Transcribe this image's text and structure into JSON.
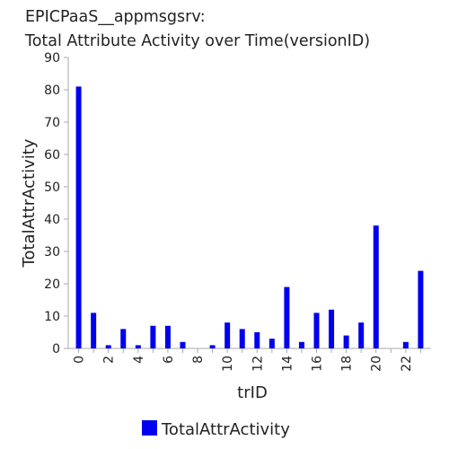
{
  "chart_data": {
    "type": "bar",
    "title": "EPICPaaS__appmsgsrv:",
    "subtitle": "Total Attribute Activity over Time(versionID)",
    "xlabel": "trID",
    "ylabel": "TotalAttrActivity",
    "x": [
      0,
      1,
      2,
      3,
      4,
      5,
      6,
      7,
      8,
      9,
      10,
      11,
      12,
      13,
      14,
      15,
      16,
      17,
      18,
      19,
      20,
      21,
      22,
      23
    ],
    "series": [
      {
        "name": "TotalAttrActivity",
        "color": "#0000ee",
        "values": [
          81,
          11,
          1,
          6,
          1,
          7,
          7,
          2,
          0,
          1,
          8,
          6,
          5,
          3,
          19,
          2,
          11,
          12,
          4,
          8,
          38,
          0,
          2,
          24
        ]
      }
    ],
    "xlim": [
      -0.7,
      23.7
    ],
    "ylim": [
      0,
      90
    ],
    "y_ticks": [
      0,
      10,
      20,
      30,
      40,
      50,
      60,
      70,
      80,
      90
    ],
    "x_ticks": [
      "0",
      "2",
      "4",
      "6",
      "8",
      "10",
      "12",
      "14",
      "16",
      "18",
      "20",
      "22"
    ],
    "grid": false,
    "legend": "bottom-center"
  },
  "colors": {
    "bar": "#0000ee",
    "axis": "#aaaaaa",
    "text": "#222222"
  }
}
